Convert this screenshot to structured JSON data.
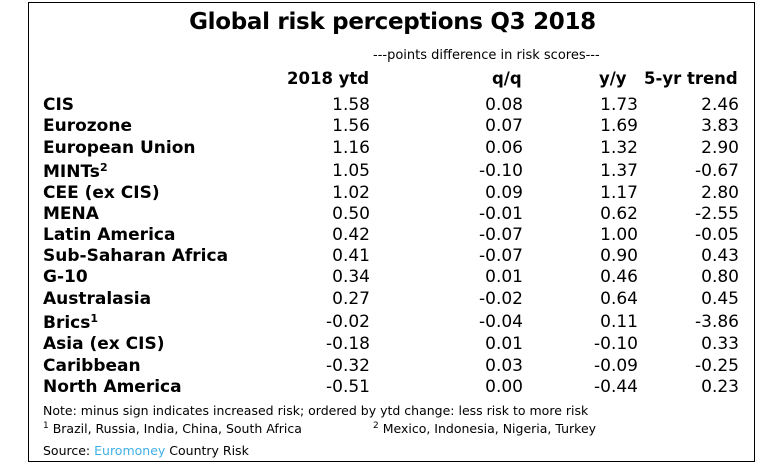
{
  "title": "Global risk perceptions Q3 2018",
  "subheader": "---points difference in risk scores---",
  "columns": [
    "2018 ytd",
    "q/q",
    "y/y",
    "5-yr trend"
  ],
  "rows": [
    {
      "name": "CIS",
      "sup": "",
      "ytd": "1.58",
      "qq": "0.08",
      "yy": "1.73",
      "trend": "2.46"
    },
    {
      "name": "Eurozone",
      "sup": "",
      "ytd": "1.56",
      "qq": "0.07",
      "yy": "1.69",
      "trend": "3.83"
    },
    {
      "name": "European Union",
      "sup": "",
      "ytd": "1.16",
      "qq": "0.06",
      "yy": "1.32",
      "trend": "2.90"
    },
    {
      "name": "MINTs",
      "sup": "2",
      "ytd": "1.05",
      "qq": "-0.10",
      "yy": "1.37",
      "trend": "-0.67"
    },
    {
      "name": "CEE (ex CIS)",
      "sup": "",
      "ytd": "1.02",
      "qq": "0.09",
      "yy": "1.17",
      "trend": "2.80"
    },
    {
      "name": "MENA",
      "sup": "",
      "ytd": "0.50",
      "qq": "-0.01",
      "yy": "0.62",
      "trend": "-2.55"
    },
    {
      "name": "Latin America",
      "sup": "",
      "ytd": "0.42",
      "qq": "-0.07",
      "yy": "1.00",
      "trend": "-0.05"
    },
    {
      "name": "Sub-Saharan Africa",
      "sup": "",
      "ytd": "0.41",
      "qq": "-0.07",
      "yy": "0.90",
      "trend": "0.43"
    },
    {
      "name": "G-10",
      "sup": "",
      "ytd": "0.34",
      "qq": "0.01",
      "yy": "0.46",
      "trend": "0.80"
    },
    {
      "name": "Australasia",
      "sup": "",
      "ytd": "0.27",
      "qq": "-0.02",
      "yy": "0.64",
      "trend": "0.45"
    },
    {
      "name": "Brics",
      "sup": "1",
      "ytd": "-0.02",
      "qq": "-0.04",
      "yy": "0.11",
      "trend": "-3.86"
    },
    {
      "name": "Asia (ex CIS)",
      "sup": "",
      "ytd": "-0.18",
      "qq": "0.01",
      "yy": "-0.10",
      "trend": "0.33"
    },
    {
      "name": "Caribbean",
      "sup": "",
      "ytd": "-0.32",
      "qq": "0.03",
      "yy": "-0.09",
      "trend": "-0.25"
    },
    {
      "name": "North America",
      "sup": "",
      "ytd": "-0.51",
      "qq": "0.00",
      "yy": "-0.44",
      "trend": "0.23"
    }
  ],
  "note": "Note: minus sign indicates increased risk; ordered by ytd change: less risk to more risk",
  "footnote1": {
    "mark": "1",
    "text": " Brazil, Russia, India, China, South Africa"
  },
  "footnote2": {
    "mark": "2",
    "text": " Mexico, Indonesia, Nigeria, Turkey"
  },
  "source": {
    "prefix": "Source: ",
    "brand": "Euromoney",
    "suffix": " Country Risk"
  },
  "colors": {
    "brand": "#3fb0e6",
    "border": "#000000"
  }
}
